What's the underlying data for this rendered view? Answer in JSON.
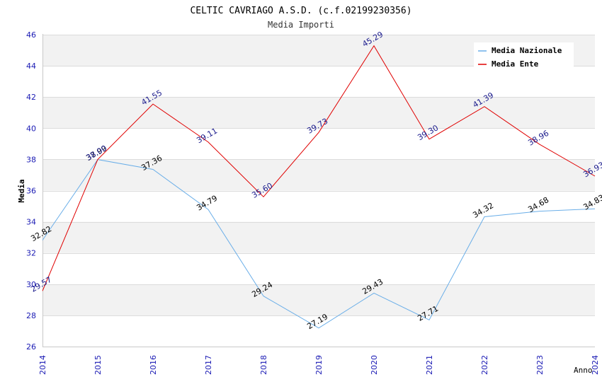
{
  "chart_data": {
    "type": "line",
    "title": "CELTIC CAVRIAGO A.S.D. (c.f.02199230356)",
    "subtitle": "Media Importi",
    "xlabel": "Anno",
    "ylabel": "Media",
    "x": [
      "2014",
      "2015",
      "2016",
      "2017",
      "2018",
      "2019",
      "2020",
      "2021",
      "2022",
      "2023",
      "2024"
    ],
    "ylim": [
      26,
      46
    ],
    "yticks": [
      "26",
      "28",
      "30",
      "32",
      "34",
      "36",
      "38",
      "40",
      "42",
      "44",
      "46"
    ],
    "grid": true,
    "legend_position": "top-right",
    "series": [
      {
        "name": "Media Nazionale",
        "color": "#6aaee8",
        "label_color": "#000000",
        "values": [
          32.82,
          37.99,
          37.36,
          34.79,
          29.24,
          27.19,
          29.43,
          27.71,
          34.32,
          34.68,
          34.83
        ],
        "labels": [
          "32.82",
          "37.99",
          "37.36",
          "34.79",
          "29.24",
          "27.19",
          "29.43",
          "27.71",
          "34.32",
          "34.68",
          "34.83"
        ]
      },
      {
        "name": "Media Ente",
        "color": "#e00000",
        "label_color": "#1a1a8c",
        "values": [
          29.57,
          38.0,
          41.55,
          39.11,
          35.6,
          39.73,
          45.29,
          39.3,
          41.39,
          38.96,
          36.93
        ],
        "labels": [
          "29.57",
          "38.00",
          "41.55",
          "39.11",
          "35.60",
          "39.73",
          "45.29",
          "39.30",
          "41.39",
          "38.96",
          "36.93"
        ]
      }
    ]
  }
}
